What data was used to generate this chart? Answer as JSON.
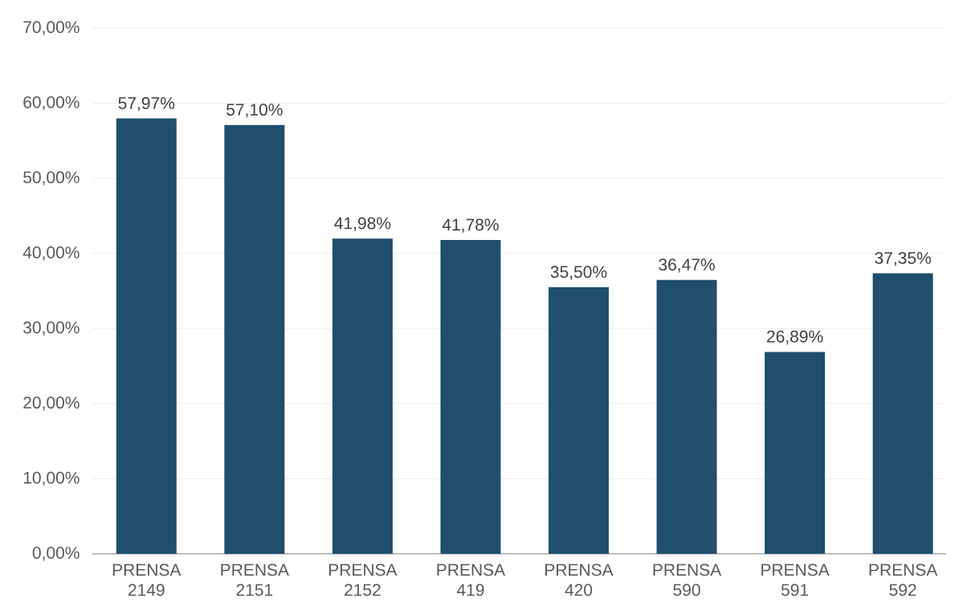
{
  "chart_data": {
    "type": "bar",
    "categories": [
      "PRENSA 2149",
      "PRENSA 2151",
      "PRENSA 2152",
      "PRENSA 419",
      "PRENSA 420",
      "PRENSA 590",
      "PRENSA 591",
      "PRENSA 592"
    ],
    "values": [
      57.97,
      57.1,
      41.98,
      41.78,
      35.5,
      36.47,
      26.89,
      37.35
    ],
    "value_labels": [
      "57,97%",
      "57,10%",
      "41,98%",
      "41,78%",
      "35,50%",
      "36,47%",
      "26,89%",
      "37,35%"
    ],
    "color": "#1f4f6d",
    "ylim": [
      0,
      70
    ],
    "yticks": [
      {
        "value": 0,
        "label": "0,00%"
      },
      {
        "value": 10,
        "label": "10,00%"
      },
      {
        "value": 20,
        "label": "20,00%"
      },
      {
        "value": 30,
        "label": "30,00%"
      },
      {
        "value": 40,
        "label": "40,00%"
      },
      {
        "value": 50,
        "label": "50,00%"
      },
      {
        "value": 60,
        "label": "60,00%"
      },
      {
        "value": 70,
        "label": "70,00%"
      }
    ],
    "grid": "y"
  }
}
